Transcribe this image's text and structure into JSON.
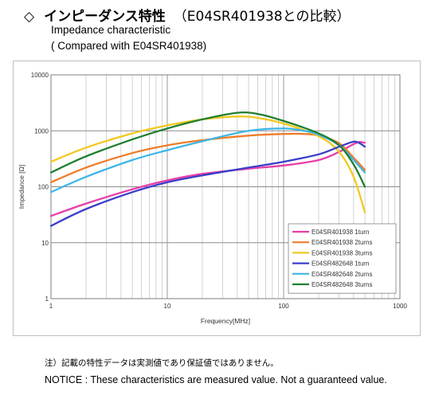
{
  "header": {
    "title_symbol": "◇",
    "title_jp": "インピーダンス特性",
    "title_compare": "（E04SR401938との比較）",
    "subtitle_line1": "Impedance characteristic",
    "subtitle_line2": "( Compared with E04SR401938)"
  },
  "notes": {
    "note_jp": "注）記載の特性データは実測値であり保証値ではありません。",
    "note_en": "NOTICE : These characteristics are measured value.  Not a guaranteed value."
  },
  "chart_data": {
    "type": "line",
    "title": "",
    "xlabel": "Frequency[MHz]",
    "ylabel": "Impedance [Ω]",
    "x_scale": "log",
    "y_scale": "log",
    "xlim": [
      1,
      1000
    ],
    "ylim": [
      1,
      10000
    ],
    "x_ticks": [
      "1",
      "10",
      "100",
      "1000"
    ],
    "y_ticks": [
      "1",
      "10",
      "100",
      "1000",
      "10000"
    ],
    "grid": true,
    "legend_position": "bottom-right",
    "series": [
      {
        "name": "E04SR401938 1turn",
        "color": "#e83ea8",
        "x": [
          1,
          2,
          5,
          10,
          20,
          50,
          100,
          200,
          300,
          400,
          450,
          500
        ],
        "y": [
          30,
          50,
          90,
          130,
          170,
          210,
          240,
          300,
          420,
          580,
          630,
          610
        ]
      },
      {
        "name": "E04SR401938 2turns",
        "color": "#ee7d2b",
        "x": [
          1,
          2,
          5,
          10,
          20,
          50,
          100,
          150,
          200,
          300,
          400,
          500
        ],
        "y": [
          120,
          220,
          400,
          550,
          680,
          820,
          880,
          880,
          820,
          600,
          330,
          200
        ]
      },
      {
        "name": "E04SR401938 3turns",
        "color": "#f2c81f",
        "x": [
          1,
          2,
          5,
          10,
          20,
          40,
          60,
          100,
          200,
          300,
          400,
          500
        ],
        "y": [
          280,
          500,
          900,
          1250,
          1600,
          1800,
          1700,
          1350,
          800,
          420,
          150,
          35
        ]
      },
      {
        "name": "E04SR482648 1turn",
        "color": "#3b3fc8",
        "x": [
          1,
          2,
          5,
          10,
          20,
          50,
          100,
          200,
          300,
          400,
          450,
          500
        ],
        "y": [
          20,
          40,
          80,
          120,
          160,
          220,
          280,
          380,
          520,
          640,
          600,
          520
        ]
      },
      {
        "name": "E04SR482648 2turns",
        "color": "#3fb6e6",
        "x": [
          1,
          2,
          5,
          10,
          20,
          50,
          100,
          150,
          200,
          300,
          400,
          500
        ],
        "y": [
          80,
          150,
          300,
          450,
          650,
          1000,
          1100,
          1000,
          850,
          550,
          300,
          180
        ]
      },
      {
        "name": "E04SR482648 3turns",
        "color": "#1f7f2f",
        "x": [
          1,
          2,
          5,
          10,
          20,
          40,
          60,
          100,
          200,
          300,
          400,
          500
        ],
        "y": [
          180,
          350,
          700,
          1100,
          1600,
          2100,
          2000,
          1500,
          900,
          550,
          250,
          100
        ]
      }
    ]
  }
}
